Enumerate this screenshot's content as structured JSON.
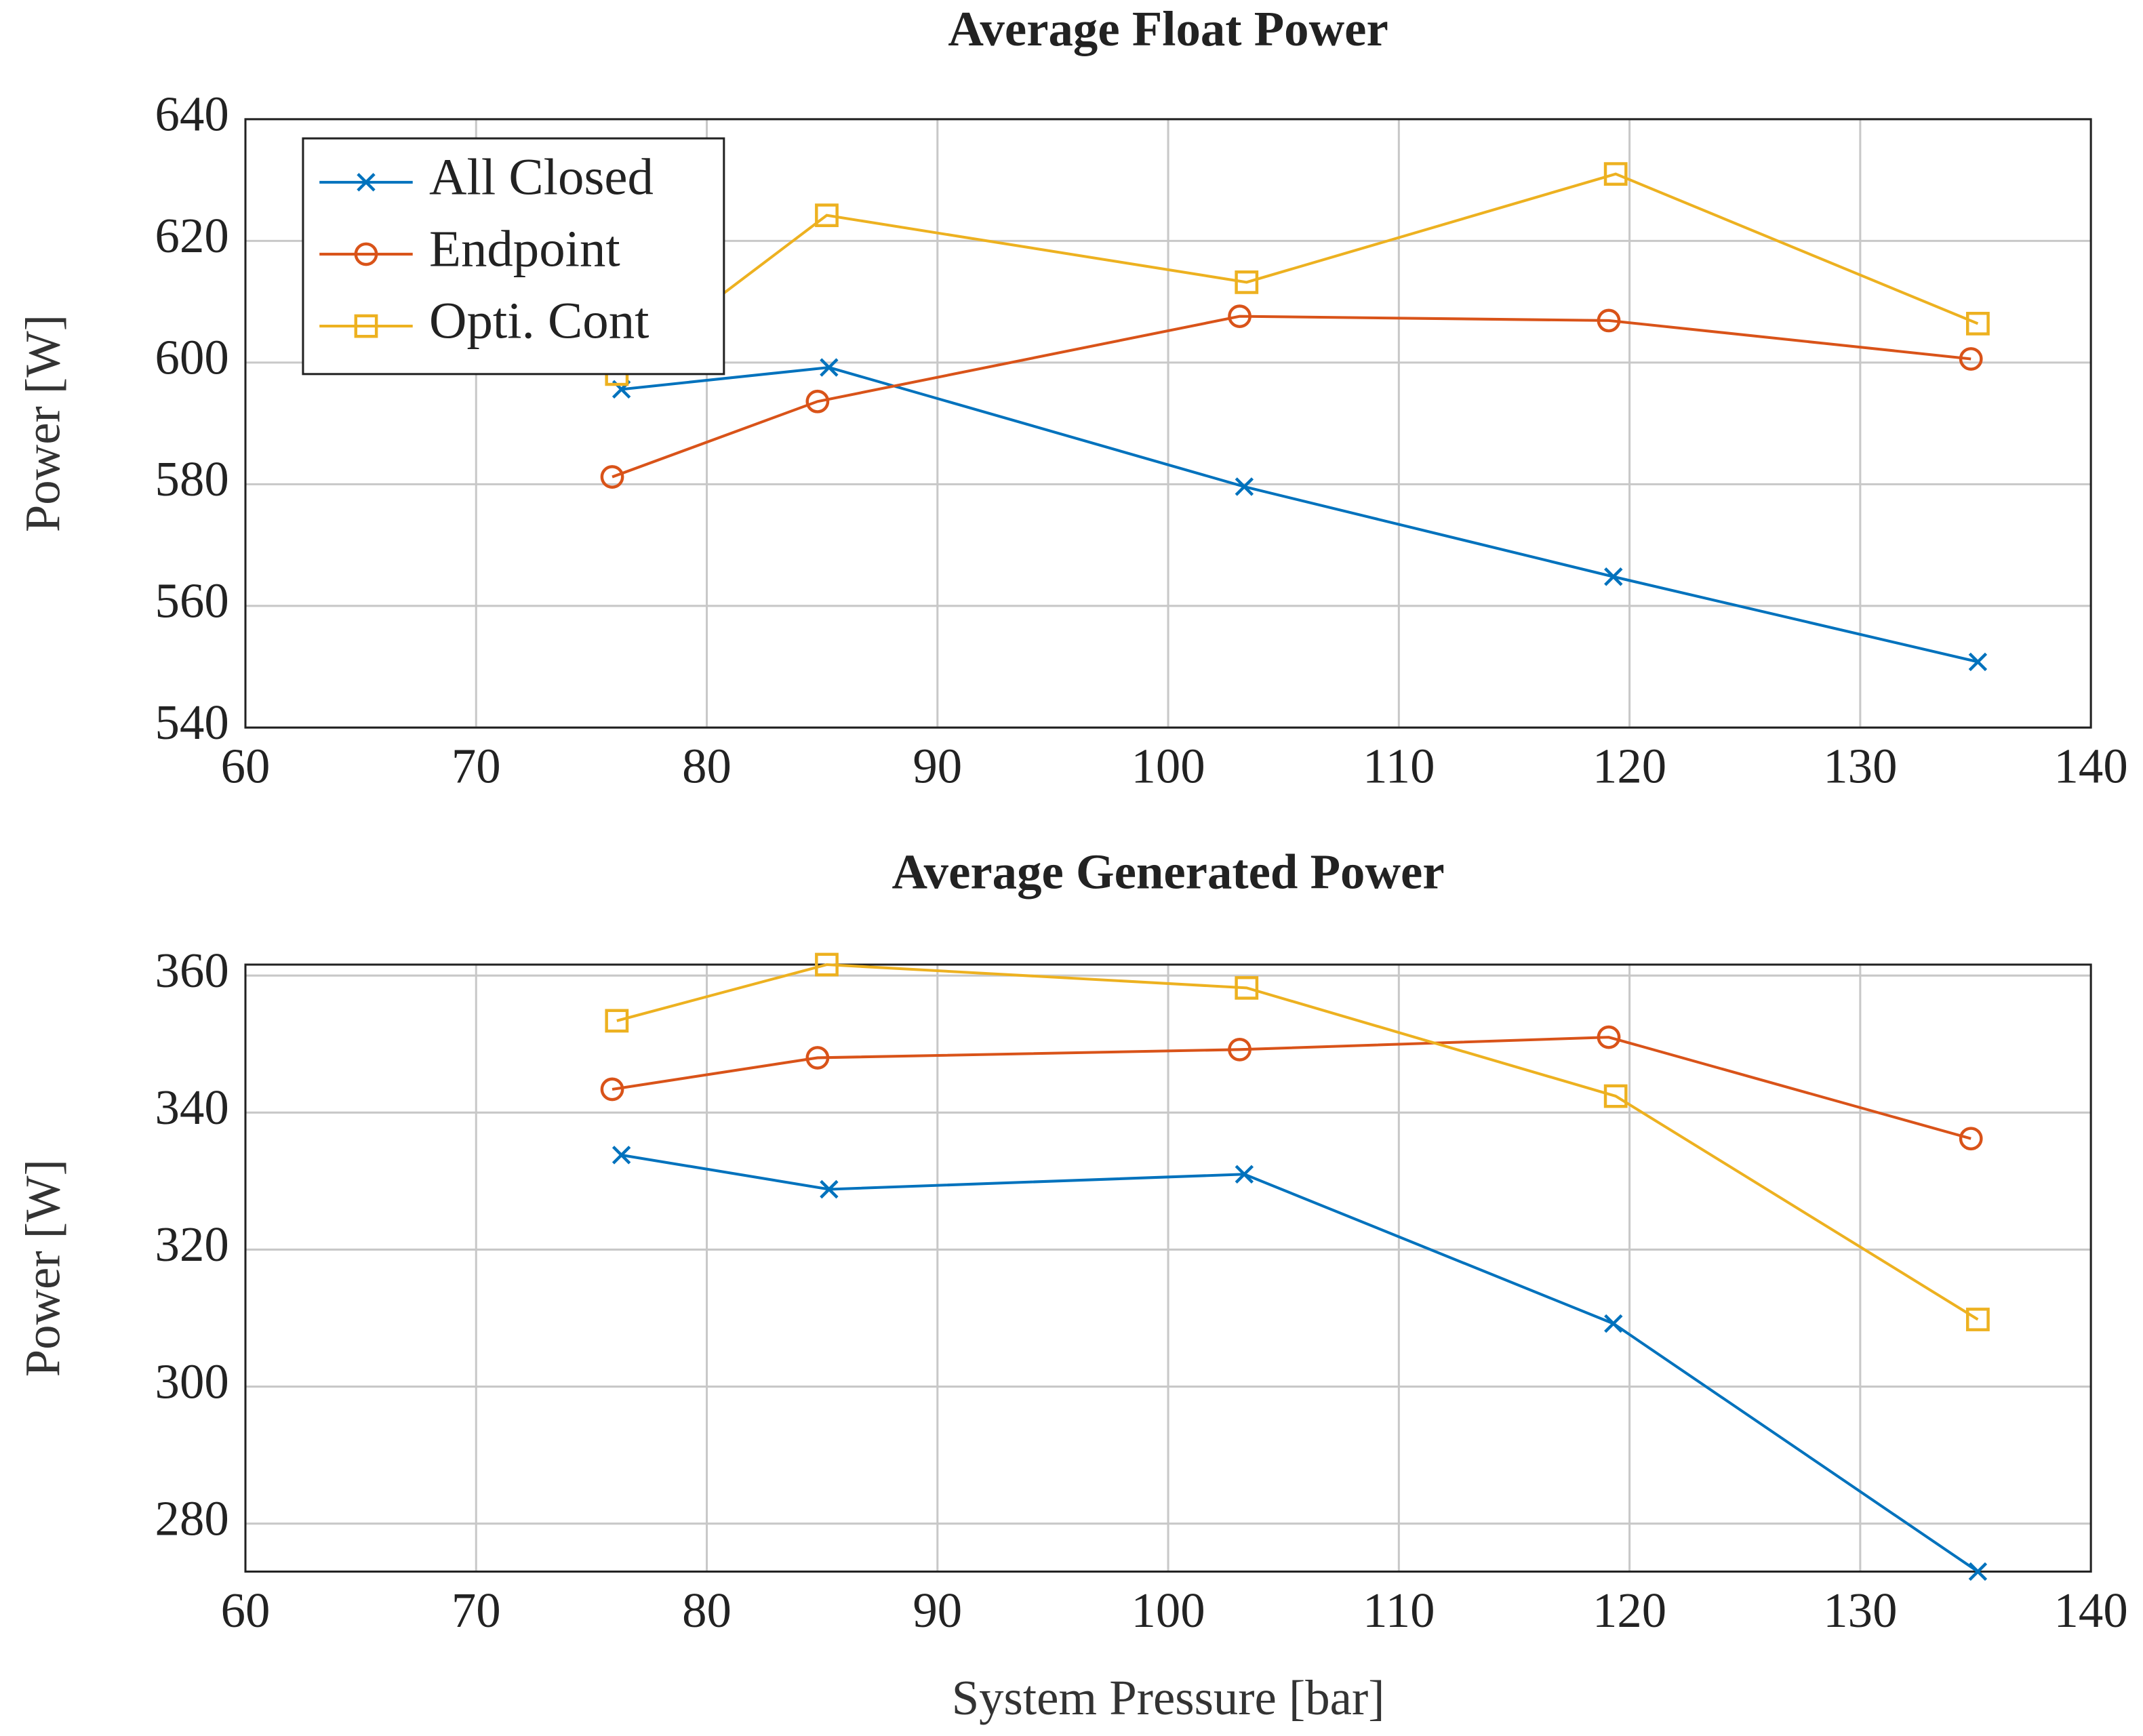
{
  "chart_data": [
    {
      "type": "line",
      "title": "Average Float Power",
      "ylabel": "Power [W]",
      "xlim": [
        60,
        140
      ],
      "xticks": [
        60,
        70,
        80,
        90,
        100,
        110,
        120,
        130,
        140
      ],
      "ylim": [
        540,
        640
      ],
      "yticks": [
        540,
        560,
        580,
        600,
        620,
        640
      ],
      "grid": true,
      "legend": "upper left",
      "series": [
        {
          "name": "All Closed",
          "color": "#0072bd",
          "marker": "x",
          "x": [
            76.3,
            85.3,
            103.3,
            119.3,
            135.1
          ],
          "values": [
            595.6,
            599.2,
            579.6,
            564.8,
            550.8
          ]
        },
        {
          "name": "Endpoint",
          "color": "#d95319",
          "marker": "o",
          "x": [
            75.9,
            84.8,
            103.1,
            119.1,
            134.8
          ],
          "values": [
            581.2,
            593.6,
            607.6,
            606.9,
            600.6
          ]
        },
        {
          "name": "Opti. Cont",
          "color": "#edb120",
          "marker": "s",
          "x": [
            76.1,
            85.2,
            103.4,
            119.4,
            135.1
          ],
          "values": [
            598.1,
            624.2,
            613.2,
            631.0,
            606.4
          ]
        }
      ]
    },
    {
      "type": "line",
      "title": "Average Generated Power",
      "ylabel": "Power [W]",
      "xlabel": "System Pressure [bar]",
      "xlim": [
        60,
        140
      ],
      "xticks": [
        60,
        70,
        80,
        90,
        100,
        110,
        120,
        130,
        140
      ],
      "ylim": [
        273,
        361.6
      ],
      "yticks": [
        280,
        300,
        320,
        340,
        360
      ],
      "grid": true,
      "series": [
        {
          "name": "All Closed",
          "color": "#0072bd",
          "marker": "x",
          "x": [
            76.3,
            85.3,
            103.3,
            119.3,
            135.1
          ],
          "values": [
            333.8,
            328.8,
            331.0,
            309.2,
            273.0
          ]
        },
        {
          "name": "Endpoint",
          "color": "#d95319",
          "marker": "o",
          "x": [
            75.9,
            84.8,
            103.1,
            119.1,
            134.8
          ],
          "values": [
            343.4,
            348.0,
            349.2,
            351.0,
            336.2
          ]
        },
        {
          "name": "Opti. Cont",
          "color": "#edb120",
          "marker": "s",
          "x": [
            76.1,
            85.2,
            103.4,
            119.4,
            135.1
          ],
          "values": [
            353.4,
            361.6,
            358.2,
            342.4,
            309.8
          ]
        }
      ]
    }
  ]
}
